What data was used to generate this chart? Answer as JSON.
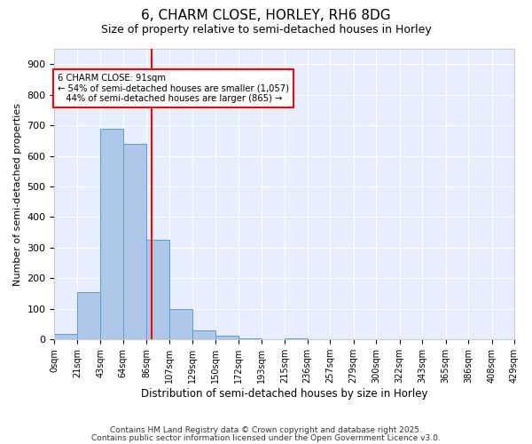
{
  "title1": "6, CHARM CLOSE, HORLEY, RH6 8DG",
  "title2": "Size of property relative to semi-detached houses in Horley",
  "xlabel": "Distribution of semi-detached houses by size in Horley",
  "ylabel": "Number of semi-detached properties",
  "bin_edges": [
    0,
    21,
    43,
    64,
    86,
    107,
    129,
    150,
    172,
    193,
    215,
    236,
    257,
    279,
    300,
    322,
    343,
    365,
    386,
    408,
    429
  ],
  "bar_heights": [
    18,
    155,
    690,
    640,
    325,
    100,
    30,
    12,
    5,
    0,
    5,
    0,
    0,
    0,
    0,
    0,
    0,
    0,
    0,
    0
  ],
  "bar_color": "#aec6e8",
  "bar_edgecolor": "#5a9fd4",
  "vline_x": 91,
  "vline_color": "red",
  "annotation_text": "6 CHARM CLOSE: 91sqm\n← 54% of semi-detached houses are smaller (1,057)\n   44% of semi-detached houses are larger (865) →",
  "annotation_box_color": "white",
  "annotation_box_edgecolor": "red",
  "ylim": [
    0,
    950
  ],
  "yticks": [
    0,
    100,
    200,
    300,
    400,
    500,
    600,
    700,
    800,
    900
  ],
  "tick_labels": [
    "0sqm",
    "21sqm",
    "43sqm",
    "64sqm",
    "86sqm",
    "107sqm",
    "129sqm",
    "150sqm",
    "172sqm",
    "193sqm",
    "215sqm",
    "236sqm",
    "257sqm",
    "279sqm",
    "300sqm",
    "322sqm",
    "343sqm",
    "365sqm",
    "386sqm",
    "408sqm",
    "429sqm"
  ],
  "footnote1": "Contains HM Land Registry data © Crown copyright and database right 2025.",
  "footnote2": "Contains public sector information licensed under the Open Government Licence v3.0.",
  "bg_color": "#ffffff",
  "plot_bg_color": "#e8eeff"
}
